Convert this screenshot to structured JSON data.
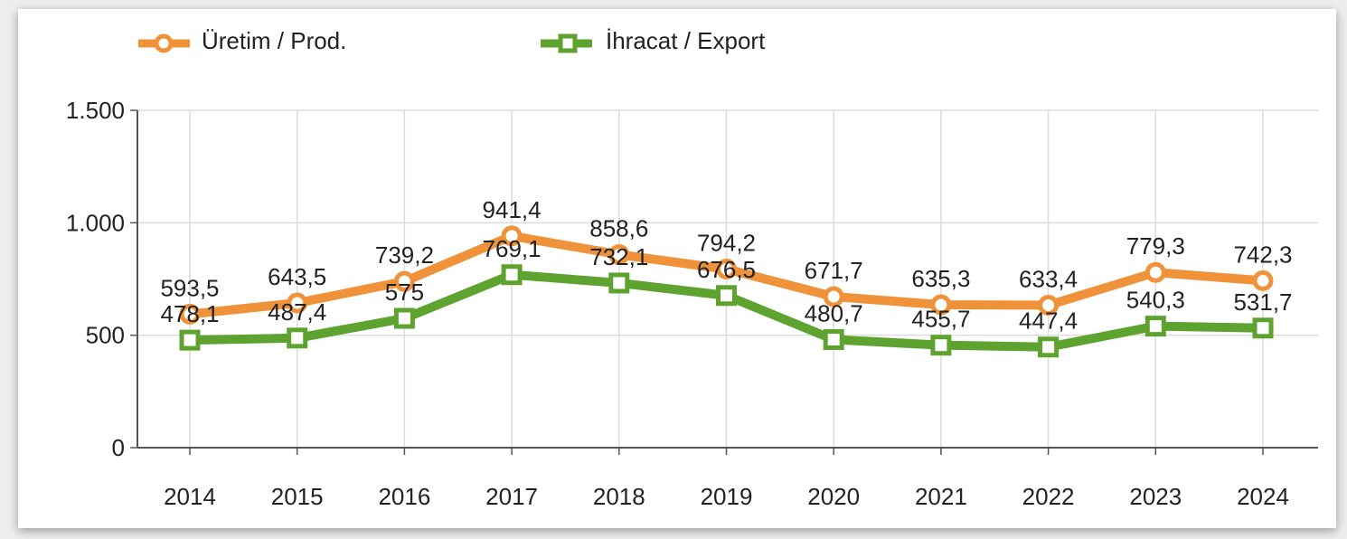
{
  "chart_data": {
    "type": "line",
    "categories": [
      "2014",
      "2015",
      "2016",
      "2017",
      "2018",
      "2019",
      "2020",
      "2021",
      "2022",
      "2023",
      "2024"
    ],
    "series": [
      {
        "name": "Üretim / Prod.",
        "values": [
          593.5,
          643.5,
          739.2,
          941.4,
          858.6,
          794.2,
          671.7,
          635.3,
          633.4,
          779.3,
          742.3
        ],
        "labels": [
          "593,5",
          "643,5",
          "739,2",
          "941,4",
          "858,6",
          "794,2",
          "671,7",
          "635,3",
          "633,4",
          "779,3",
          "742,3"
        ],
        "color": "#f0923a",
        "marker": "circle"
      },
      {
        "name": "İhracat / Export",
        "values": [
          478.1,
          487.4,
          575,
          769.1,
          732.1,
          676.5,
          480.7,
          455.7,
          447.4,
          540.3,
          531.7
        ],
        "labels": [
          "478,1",
          "487,4",
          "575",
          "769,1",
          "732,1",
          "676,5",
          "480,7",
          "455,7",
          "447,4",
          "540,3",
          "531,7"
        ],
        "color": "#5ea330",
        "marker": "square"
      }
    ],
    "ylim": [
      0,
      1500
    ],
    "yticks": [
      0,
      500,
      1000,
      1500
    ],
    "ytick_labels": [
      "0",
      "500",
      "1.000",
      "1.500"
    ],
    "grid": true,
    "legend": "top-left"
  }
}
